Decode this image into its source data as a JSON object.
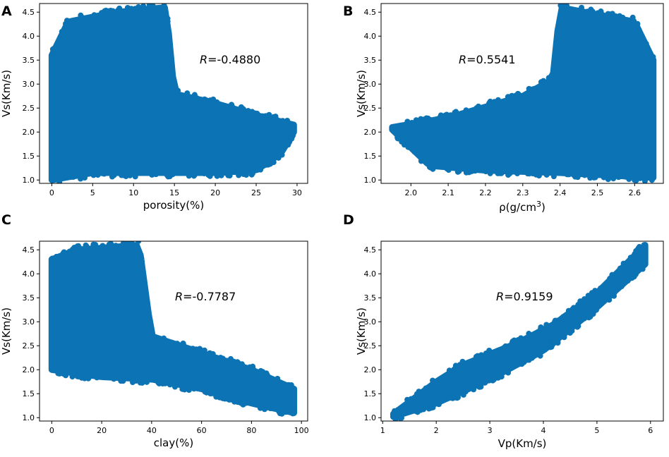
{
  "chart_data": [
    {
      "panel": "A",
      "type": "scatter",
      "xlabel": "porosity(%)",
      "ylabel": "Vs(Km/s)",
      "xlim": [
        -1.5,
        31.3
      ],
      "ylim": [
        0.93,
        4.68
      ],
      "xticks": [
        "0",
        "5",
        "10",
        "15",
        "20",
        "25",
        "30"
      ],
      "yticks": [
        "1.0",
        "1.5",
        "2.0",
        "2.5",
        "3.0",
        "3.5",
        "4.0",
        "4.5"
      ],
      "r_symbol": "R",
      "r_value": "=-0.4880",
      "color": "#0c73b4",
      "point_cloud": {
        "description": "dense scatter of Vs vs porosity",
        "envelope_low": [
          [
            0,
            1.0
          ],
          [
            5,
            1.15
          ],
          [
            10,
            1.15
          ],
          [
            20,
            1.15
          ],
          [
            25,
            1.2
          ],
          [
            28,
            1.55
          ],
          [
            29.6,
            2.0
          ]
        ],
        "envelope_high": [
          [
            0,
            3.6
          ],
          [
            2,
            4.3
          ],
          [
            8,
            4.5
          ],
          [
            14,
            4.6
          ],
          [
            15,
            2.8
          ],
          [
            20,
            2.6
          ],
          [
            25,
            2.35
          ],
          [
            29.6,
            2.15
          ]
        ]
      }
    },
    {
      "panel": "B",
      "type": "scatter",
      "xlabel": "ρ(g/cm",
      "xlabel_sup": "3",
      "xlabel_end": ")",
      "ylabel": "Vs(Km/s)",
      "xlim": [
        1.92,
        2.677
      ],
      "ylim": [
        0.93,
        4.68
      ],
      "xticks": [
        "2.0",
        "2.1",
        "2.2",
        "2.3",
        "2.4",
        "2.5",
        "2.6"
      ],
      "yticks": [
        "1.0",
        "1.5",
        "2.0",
        "2.5",
        "3.0",
        "3.5",
        "4.0",
        "4.5"
      ],
      "r_symbol": "R",
      "r_value": "=0.5541",
      "color": "#0c73b4",
      "point_cloud": {
        "description": "dense scatter of Vs vs density",
        "envelope_low": [
          [
            1.95,
            2.05
          ],
          [
            2.05,
            1.3
          ],
          [
            2.2,
            1.2
          ],
          [
            2.4,
            1.15
          ],
          [
            2.65,
            1.05
          ]
        ],
        "envelope_high": [
          [
            1.95,
            2.1
          ],
          [
            2.1,
            2.3
          ],
          [
            2.3,
            2.75
          ],
          [
            2.38,
            3.1
          ],
          [
            2.4,
            4.6
          ],
          [
            2.6,
            4.3
          ],
          [
            2.65,
            3.5
          ]
        ]
      }
    },
    {
      "panel": "C",
      "type": "scatter",
      "xlabel": "clay(%)",
      "ylabel": "Vs(Km/s)",
      "xlim": [
        -4.9,
        102.5
      ],
      "ylim": [
        0.93,
        4.68
      ],
      "xticks": [
        "0",
        "20",
        "40",
        "60",
        "80",
        "100"
      ],
      "yticks": [
        "1.0",
        "1.5",
        "2.0",
        "2.5",
        "3.0",
        "3.5",
        "4.0",
        "4.5"
      ],
      "r_symbol": "R",
      "r_value": "=-0.7787",
      "color": "#0c73b4",
      "point_cloud": {
        "description": "dense scatter of Vs vs clay content",
        "envelope_low": [
          [
            0,
            2.0
          ],
          [
            20,
            1.85
          ],
          [
            40,
            1.8
          ],
          [
            60,
            1.6
          ],
          [
            80,
            1.3
          ],
          [
            97,
            1.1
          ]
        ],
        "envelope_high": [
          [
            0,
            4.3
          ],
          [
            10,
            4.5
          ],
          [
            35,
            4.6
          ],
          [
            40,
            2.7
          ],
          [
            60,
            2.35
          ],
          [
            80,
            2.0
          ],
          [
            97,
            1.6
          ]
        ]
      }
    },
    {
      "panel": "D",
      "type": "scatter",
      "xlabel": "Vp(Km/s)",
      "ylabel": "Vs(Km/s)",
      "xlim": [
        0.97,
        6.24
      ],
      "ylim": [
        0.93,
        4.68
      ],
      "xticks": [
        "1",
        "2",
        "3",
        "4",
        "5",
        "6"
      ],
      "yticks": [
        "1.0",
        "1.5",
        "2.0",
        "2.5",
        "3.0",
        "3.5",
        "4.0",
        "4.5"
      ],
      "r_symbol": "R",
      "r_value": "=0.9159",
      "color": "#0c73b4",
      "point_cloud": {
        "description": "tight positive trend of Vs vs Vp",
        "envelope_low": [
          [
            1.2,
            1.02
          ],
          [
            2,
            1.3
          ],
          [
            3,
            1.8
          ],
          [
            4,
            2.4
          ],
          [
            5,
            3.3
          ],
          [
            5.9,
            4.2
          ]
        ],
        "envelope_high": [
          [
            1.2,
            1.08
          ],
          [
            2,
            1.75
          ],
          [
            2.5,
            2.1
          ],
          [
            3.5,
            2.55
          ],
          [
            4.2,
            2.95
          ],
          [
            5,
            3.6
          ],
          [
            5.9,
            4.6
          ]
        ]
      }
    }
  ]
}
